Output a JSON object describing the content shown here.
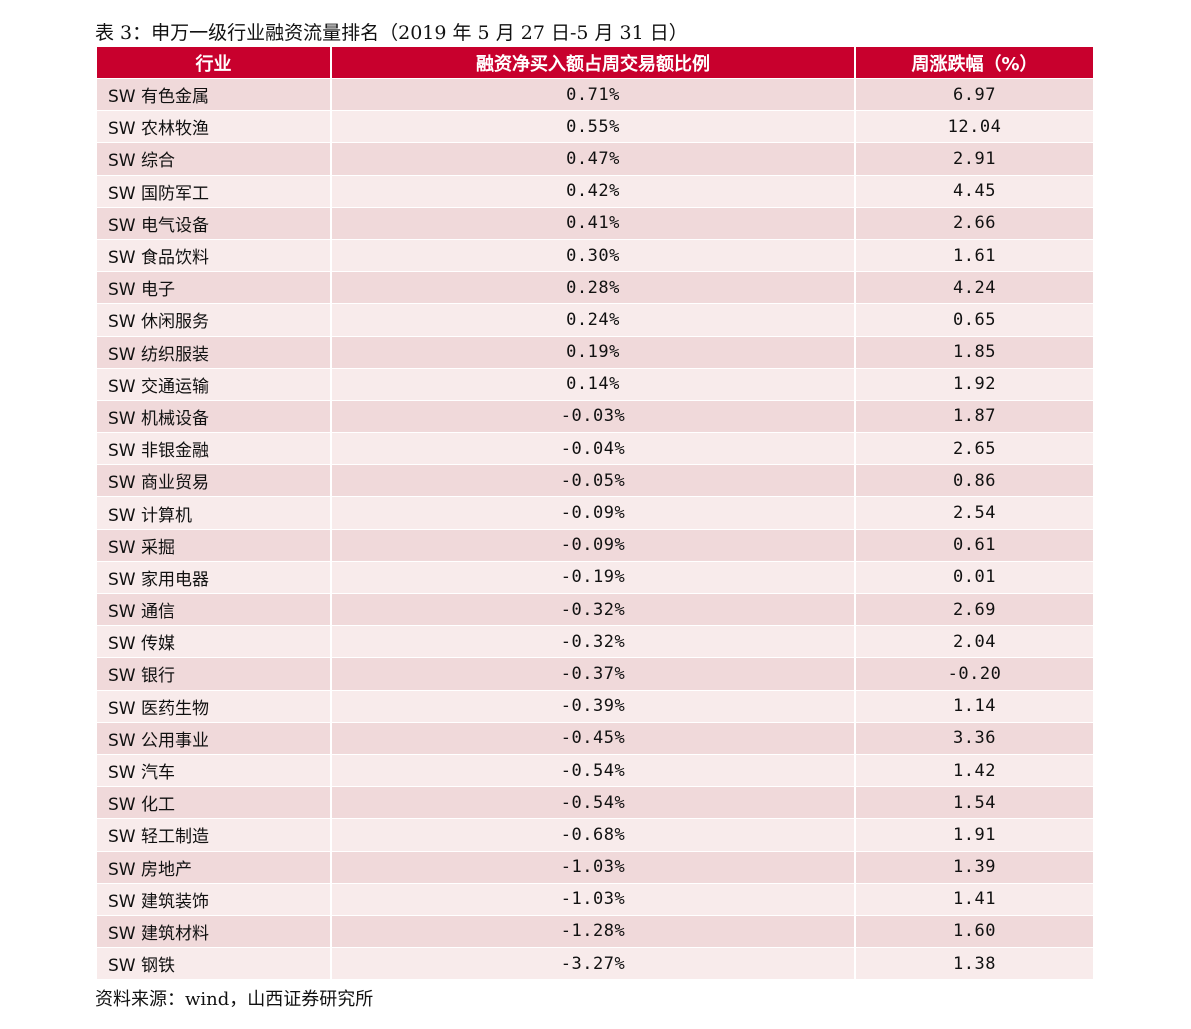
{
  "title": "表 3：申万一级行业融资流量排名（2019 年 5 月 27 日-5 月 31 日）",
  "columns": [
    "行业",
    "融资净买入额占周交易额比例",
    "周涨跌幅（%）"
  ],
  "rows": [
    [
      "SW 有色金属",
      "0.71%",
      "6.97"
    ],
    [
      "SW 农林牧渔",
      "0.55%",
      "12.04"
    ],
    [
      "SW 综合",
      "0.47%",
      "2.91"
    ],
    [
      "SW 国防军工",
      "0.42%",
      "4.45"
    ],
    [
      "SW 电气设备",
      "0.41%",
      "2.66"
    ],
    [
      "SW 食品饮料",
      "0.30%",
      "1.61"
    ],
    [
      "SW 电子",
      "0.28%",
      "4.24"
    ],
    [
      "SW 休闲服务",
      "0.24%",
      "0.65"
    ],
    [
      "SW 纺织服装",
      "0.19%",
      "1.85"
    ],
    [
      "SW 交通运输",
      "0.14%",
      "1.92"
    ],
    [
      "SW 机械设备",
      "-0.03%",
      "1.87"
    ],
    [
      "SW 非银金融",
      "-0.04%",
      "2.65"
    ],
    [
      "SW 商业贸易",
      "-0.05%",
      "0.86"
    ],
    [
      "SW 计算机",
      "-0.09%",
      "2.54"
    ],
    [
      "SW 采掘",
      "-0.09%",
      "0.61"
    ],
    [
      "SW 家用电器",
      "-0.19%",
      "0.01"
    ],
    [
      "SW 通信",
      "-0.32%",
      "2.69"
    ],
    [
      "SW 传媒",
      "-0.32%",
      "2.04"
    ],
    [
      "SW 银行",
      "-0.37%",
      "-0.20"
    ],
    [
      "SW 医药生物",
      "-0.39%",
      "1.14"
    ],
    [
      "SW 公用事业",
      "-0.45%",
      "3.36"
    ],
    [
      "SW 汽车",
      "-0.54%",
      "1.42"
    ],
    [
      "SW 化工",
      "-0.54%",
      "1.54"
    ],
    [
      "SW 轻工制造",
      "-0.68%",
      "1.91"
    ],
    [
      "SW 房地产",
      "-1.03%",
      "1.39"
    ],
    [
      "SW 建筑装饰",
      "-1.03%",
      "1.41"
    ],
    [
      "SW 建筑材料",
      "-1.28%",
      "1.60"
    ],
    [
      "SW 钢铁",
      "-3.27%",
      "1.38"
    ]
  ],
  "source": "资料来源：wind，山西证券研究所",
  "colors": {
    "header": "#c8002d",
    "row_odd": "#f0d9da",
    "row_even": "#f8ebeb"
  }
}
